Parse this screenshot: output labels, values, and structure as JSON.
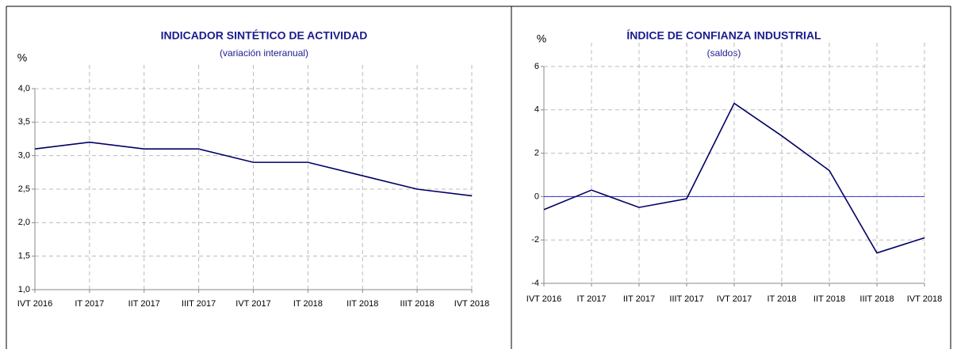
{
  "chart_data": [
    {
      "type": "line",
      "title": "INDICADOR SINTÉTICO DE ACTIVIDAD",
      "subtitle": "(variación interanual)",
      "ylabel": "%",
      "categories": [
        "IVT 2016",
        "IT 2017",
        "IIT 2017",
        "IIIT 2017",
        "IVT 2017",
        "IT 2018",
        "IIT 2018",
        "IIIT 2018",
        "IVT 2018"
      ],
      "series": [
        {
          "color": "#000066",
          "values": [
            3.1,
            3.2,
            3.1,
            3.1,
            2.9,
            2.9,
            2.7,
            2.5,
            2.4
          ]
        }
      ],
      "ylim": [
        1,
        4
      ],
      "yticks": [
        {
          "value": 1,
          "label": "1,0"
        },
        {
          "value": 1.5,
          "label": "1,5"
        },
        {
          "value": 2,
          "label": "2,0"
        },
        {
          "value": 2.5,
          "label": "2,5"
        },
        {
          "value": 3,
          "label": "3,0"
        },
        {
          "value": 3.5,
          "label": "3,5"
        },
        {
          "value": 4,
          "label": "4,0"
        }
      ],
      "grid": true
    },
    {
      "type": "line",
      "title": "ÍNDICE DE CONFIANZA INDUSTRIAL",
      "subtitle": "(saldos)",
      "ylabel": "%",
      "categories": [
        "IVT 2016",
        "IT 2017",
        "IIT 2017",
        "IIIT 2017",
        "IVT 2017",
        "IT 2018",
        "IIT 2018",
        "IIIT 2018",
        "IVT 2018"
      ],
      "series": [
        {
          "color": "#000066",
          "values": [
            -0.6,
            0.3,
            -0.5,
            -0.1,
            4.3,
            2.8,
            1.2,
            -2.6,
            -1.9
          ]
        }
      ],
      "ylim": [
        -4,
        6
      ],
      "yticks": [
        -4,
        -2,
        0,
        2,
        4,
        6
      ],
      "grid": true
    }
  ]
}
